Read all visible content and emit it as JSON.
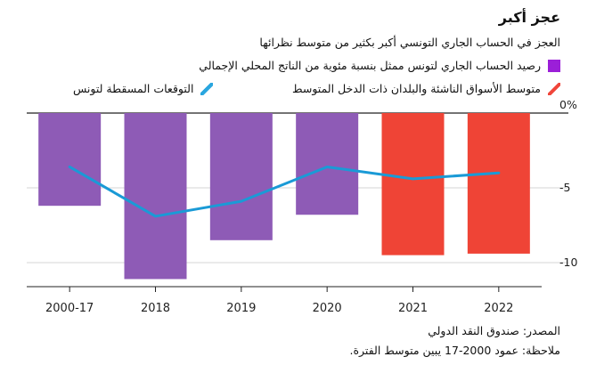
{
  "title": "عجز أكبر",
  "subtitle": "العجز في الحساب الجاري التونسي أكبر بكثير من متوسط نظرائها",
  "legend": [
    {
      "label": "رصيد الحساب الجاري لتونس ممثل بنسبة مئوية من الناتج المحلي الإجمالي",
      "color": "#9b1fd8",
      "icon": "square-swatch"
    },
    {
      "label": "متوسط الأسواق الناشئة والبلدان ذات الدخل المتوسط",
      "color": "#f0453a",
      "icon": "diagonal-stripe-swatch"
    },
    {
      "label": "التوقعات المسقطة لتونس",
      "color": "#2aa6df",
      "icon": "line-swatch"
    }
  ],
  "source": "المصدر: صندوق النقد الدولي",
  "note": "ملاحظة: عمود 2000-17 يبين متوسط الفترة.",
  "chart_data": {
    "type": "bar",
    "categories": [
      "2000-17",
      "2018",
      "2019",
      "2020",
      "2021",
      "2022"
    ],
    "series": [
      {
        "values": [
          -6.2,
          -11.1,
          -8.5,
          -6.8,
          -9.5,
          -9.4
        ],
        "colors": [
          "#8e5bb6",
          "#8e5bb6",
          "#8e5bb6",
          "#8e5bb6",
          "#ef4436",
          "#ef4436"
        ]
      },
      {
        "type": "line",
        "values": [
          -3.6,
          -6.9,
          -5.9,
          -3.6,
          -4.4,
          -4.0
        ],
        "color": "#1a9ad6"
      }
    ],
    "ylim": [
      -11.5,
      0
    ],
    "yticks": [
      0,
      -5,
      -10
    ],
    "ytick_labels": [
      "0%",
      "-5",
      "-10"
    ],
    "grid": true
  }
}
